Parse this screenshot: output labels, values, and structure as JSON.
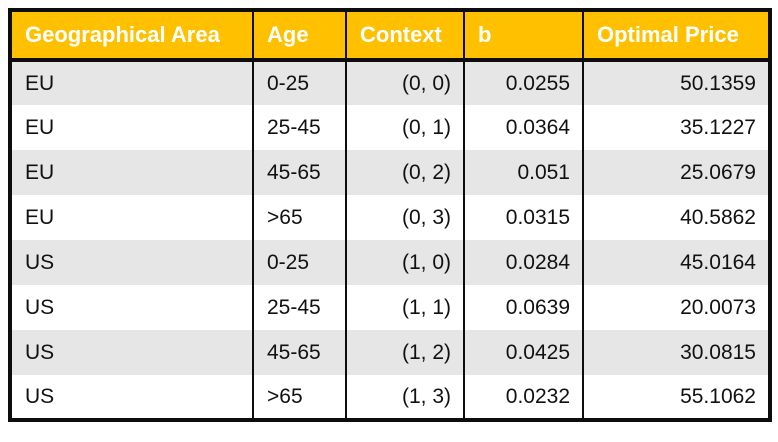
{
  "chart_data": {
    "type": "table",
    "title": "",
    "columns": [
      {
        "label": "Geographical Area",
        "align": "left"
      },
      {
        "label": "Age",
        "align": "left"
      },
      {
        "label": "Context",
        "align": "right"
      },
      {
        "label": "b",
        "align": "right"
      },
      {
        "label": "Optimal Price",
        "align": "right"
      }
    ],
    "rows": [
      [
        "EU",
        "0-25",
        "(0, 0)",
        "0.0255",
        "50.1359"
      ],
      [
        "EU",
        "25-45",
        "(0, 1)",
        "0.0364",
        "35.1227"
      ],
      [
        "EU",
        "45-65",
        "(0, 2)",
        "0.051",
        "25.0679"
      ],
      [
        "EU",
        ">65",
        "(0, 3)",
        "0.0315",
        "40.5862"
      ],
      [
        "US",
        "0-25",
        "(1, 0)",
        "0.0284",
        "45.0164"
      ],
      [
        "US",
        "25-45",
        "(1, 1)",
        "0.0639",
        "20.0073"
      ],
      [
        "US",
        "45-65",
        "(1, 2)",
        "0.0425",
        "30.0815"
      ],
      [
        "US",
        ">65",
        "(1, 3)",
        "0.0232",
        "55.1062"
      ]
    ],
    "layout": {
      "header_style": "bold white on gold",
      "row_striping": "odd rows gray, even rows white",
      "grid": "heavy black outer border and column separators, no horizontal row lines"
    }
  },
  "colors": {
    "header_bg": "#FFC000",
    "header_text": "#FFFFFF",
    "row_alt_bg": "#E7E6E6",
    "row_bg": "#FFFFFF",
    "border": "#0D0D0D",
    "body_text": "#111111"
  }
}
